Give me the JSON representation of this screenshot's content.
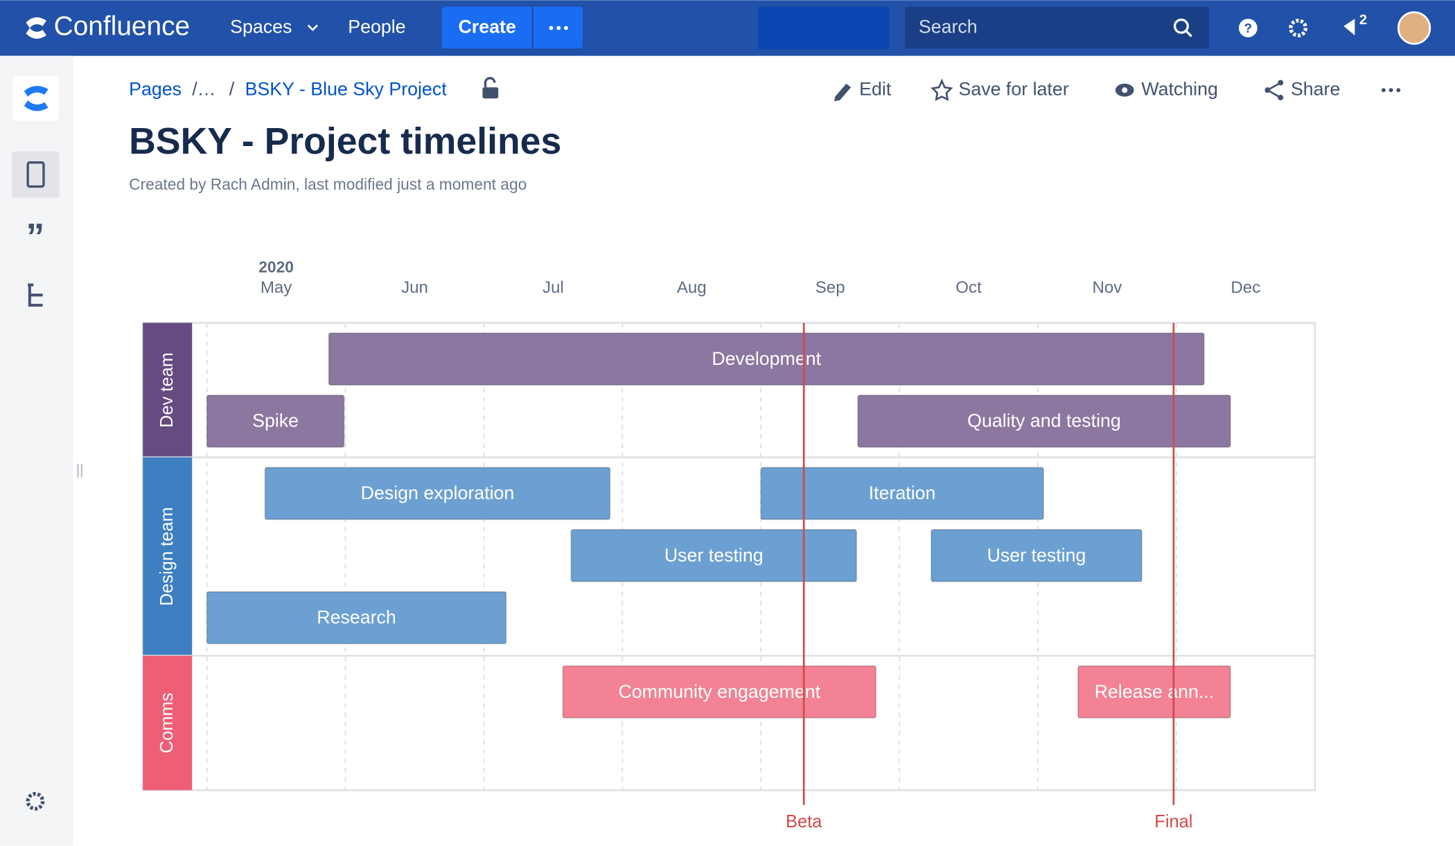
{
  "nav": {
    "product": "Confluence",
    "spaces": "Spaces",
    "people": "People",
    "create": "Create",
    "search": "Search",
    "notifications": "2"
  },
  "breadcrumb": [
    "Pages",
    "/…",
    "/",
    "BSKY - Blue Sky Project"
  ],
  "actions": [
    "Edit",
    "Save for later",
    "Watching",
    "Share"
  ],
  "title": "BSKY - Project timelines",
  "byline": "Created by Rach Admin, last modified just a moment ago",
  "timeline": {
    "year": "2020",
    "xlim": [
      0,
      8
    ],
    "xticks": [
      {
        "value": 0,
        "label": "May"
      },
      {
        "value": 1,
        "label": "Jun"
      },
      {
        "value": 2,
        "label": "Jul"
      },
      {
        "value": 3,
        "label": "Aug"
      },
      {
        "value": 4,
        "label": "Sep"
      },
      {
        "value": 5,
        "label": "Oct"
      },
      {
        "value": 6,
        "label": "Nov"
      },
      {
        "value": 7,
        "label": "Dec"
      }
    ],
    "lanes": [
      {
        "name": "Dev team",
        "color": "#654b80",
        "bar_color": "#8c77a0",
        "bars": [
          {
            "label": "Development",
            "start": 0.88,
            "end": 7.2
          },
          {
            "label": "Spike",
            "start": 0,
            "end": 0.99
          },
          {
            "label": "Quality and testing",
            "start": 4.7,
            "end": 7.39
          }
        ]
      },
      {
        "name": "Design team",
        "color": "#3d7fc1",
        "bar_color": "#6ca0d2",
        "bars": [
          {
            "label": "Design exploration",
            "start": 0.42,
            "end": 2.91
          },
          {
            "label": "Iteration",
            "start": 4.0,
            "end": 6.04
          },
          {
            "label": "User testing",
            "start": 2.63,
            "end": 4.69
          },
          {
            "label": "User testing",
            "start": 5.23,
            "end": 6.75
          },
          {
            "label": "Research",
            "start": 0,
            "end": 2.16
          }
        ]
      },
      {
        "name": "Comms",
        "color": "#ee5e74",
        "bar_color": "#f28294",
        "bars": [
          {
            "label": "Community engagement",
            "start": 2.57,
            "end": 4.83
          },
          {
            "label": "Release ann...",
            "start": 6.29,
            "end": 7.39
          }
        ]
      }
    ],
    "markers": [
      {
        "label": "Beta",
        "value": 4.31
      },
      {
        "label": "Final",
        "value": 6.98
      }
    ],
    "marker_color": "#d0494a"
  }
}
